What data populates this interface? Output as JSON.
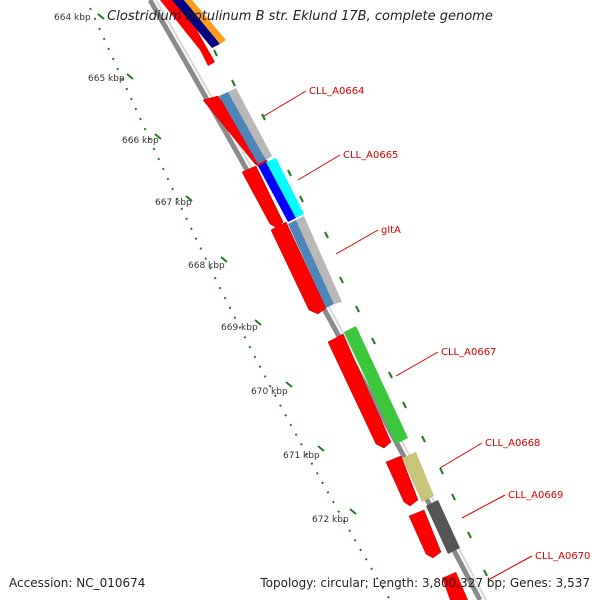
{
  "title": "Clostridium botulinum B str. Eklund 17B, complete genome",
  "accession_label": "Accession: NC_010674",
  "topology_label": "Topology: circular; Length: 3,800,327 bp; Genes: 3,537",
  "scale_ticks": [
    "664 kbp",
    "665 kbp",
    "666 kbp",
    "667 kbp",
    "668 kbp",
    "669 kbp",
    "670 kbp",
    "671 kbp",
    "672 kbp"
  ],
  "gene_labels": [
    "CLL_A0664",
    "CLL_A0665",
    "gltA",
    "CLL_A0667",
    "CLL_A0668",
    "CLL_A0669",
    "CLL_A0670"
  ],
  "colors": {
    "backbone": "#8a8a8a",
    "gene_red": "#ff0000",
    "label_red": "#d40000",
    "tick_green": "#1e7d1e",
    "navy": "#000080",
    "orange": "#ff9c1a",
    "steelblue": "#4f86b8",
    "silver": "#b8b8b8",
    "blue": "#0000ff",
    "cyan": "#00ffff",
    "green": "#3cc83c",
    "khaki": "#c8c47a",
    "darkgray": "#555555"
  }
}
